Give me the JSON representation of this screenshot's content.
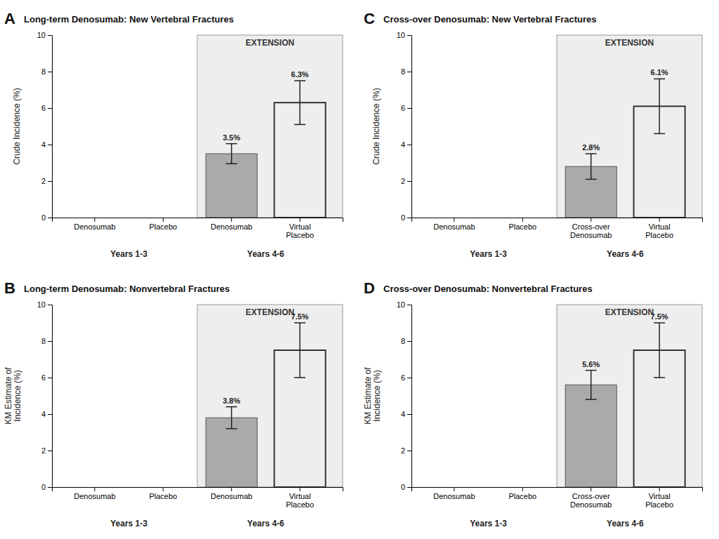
{
  "chart_data": [
    {
      "type": "bar",
      "panel_label": "A",
      "title": "Long-term Denosumab: New Vertebral Fractures",
      "ylabel": "Crude Incidence (%)",
      "annotation": "EXTENSION",
      "categories": [
        "Denosumab",
        "Placebo",
        "Denosumab",
        "Virtual\nPlacebo"
      ],
      "category_groups": [
        "Years 1-3",
        "Years 1-3",
        "Years 4-6",
        "Years 4-6"
      ],
      "values": [
        null,
        null,
        3.5,
        6.3
      ],
      "error_low": [
        null,
        null,
        0.55,
        1.2
      ],
      "error_high": [
        null,
        null,
        0.55,
        1.2
      ],
      "value_labels": [
        null,
        null,
        "3.5%",
        "6.3%"
      ],
      "data_labels": true,
      "colors": [
        null,
        null,
        "#aaaaaa",
        "none"
      ],
      "ylim": [
        0,
        10
      ],
      "yticks": [
        0,
        2,
        4,
        6,
        8,
        10
      ]
    },
    {
      "type": "bar",
      "panel_label": "C",
      "title": "Cross-over Denosumab: New Vertebral Fractures",
      "ylabel": "Crude Incidence (%)",
      "annotation": "EXTENSION",
      "categories": [
        "Denosumab",
        "Placebo",
        "Cross-over\nDenosumab",
        "Virtual\nPlacebo"
      ],
      "category_groups": [
        "Years 1-3",
        "Years 1-3",
        "Years 4-6",
        "Years 4-6"
      ],
      "values": [
        null,
        null,
        2.8,
        6.1
      ],
      "error_low": [
        null,
        null,
        0.7,
        1.5
      ],
      "error_high": [
        null,
        null,
        0.7,
        1.5
      ],
      "value_labels": [
        null,
        null,
        "2.8%",
        "6.1%"
      ],
      "data_labels": true,
      "colors": [
        null,
        null,
        "#aaaaaa",
        "none"
      ],
      "ylim": [
        0,
        10
      ],
      "yticks": [
        0,
        2,
        4,
        6,
        8,
        10
      ]
    },
    {
      "type": "bar",
      "panel_label": "B",
      "title": "Long-term Denosumab: Nonvertebral Fractures",
      "ylabel": "KM Estimate of\nIncidence (%)",
      "annotation": "EXTENSION",
      "categories": [
        "Denosumab",
        "Placebo",
        "Denosumab",
        "Virtual\nPlacebo"
      ],
      "category_groups": [
        "Years 1-3",
        "Years 1-3",
        "Years 4-6",
        "Years 4-6"
      ],
      "values": [
        null,
        null,
        3.8,
        7.5
      ],
      "error_low": [
        null,
        null,
        0.6,
        1.5
      ],
      "error_high": [
        null,
        null,
        0.6,
        1.5
      ],
      "value_labels": [
        null,
        null,
        "3.8%",
        "7.5%"
      ],
      "data_labels": true,
      "colors": [
        null,
        null,
        "#aaaaaa",
        "none"
      ],
      "ylim": [
        0,
        10
      ],
      "yticks": [
        0,
        2,
        4,
        6,
        8,
        10
      ]
    },
    {
      "type": "bar",
      "panel_label": "D",
      "title": "Cross-over Denosumab: Nonvertebral Fractures",
      "ylabel": "KM Estimate of\nIncidence (%)",
      "annotation": "EXTENSION",
      "categories": [
        "Denosumab",
        "Placebo",
        "Cross-over\nDenosumab",
        "Virtual\nPlacebo"
      ],
      "category_groups": [
        "Years 1-3",
        "Years 1-3",
        "Years 4-6",
        "Years 4-6"
      ],
      "values": [
        null,
        null,
        5.6,
        7.5
      ],
      "error_low": [
        null,
        null,
        0.8,
        1.5
      ],
      "error_high": [
        null,
        null,
        0.8,
        1.5
      ],
      "value_labels": [
        null,
        null,
        "5.6%",
        "7.5%"
      ],
      "data_labels": true,
      "colors": [
        null,
        null,
        "#aaaaaa",
        "none"
      ],
      "ylim": [
        0,
        10
      ],
      "yticks": [
        0,
        2,
        4,
        6,
        8,
        10
      ]
    }
  ]
}
